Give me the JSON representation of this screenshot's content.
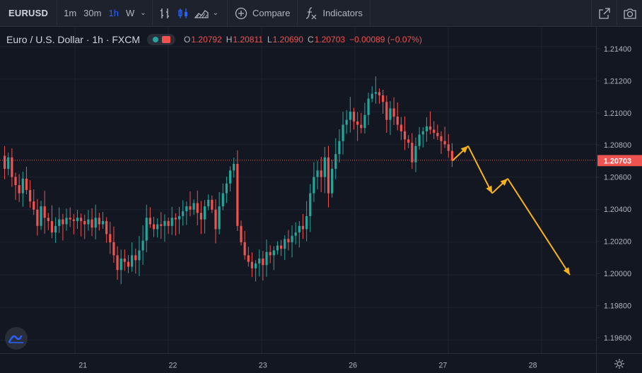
{
  "toolbar": {
    "symbol": "EURUSD",
    "timeframes": [
      {
        "label": "1m",
        "active": false
      },
      {
        "label": "30m",
        "active": false
      },
      {
        "label": "1h",
        "active": true
      },
      {
        "label": "W",
        "active": false
      }
    ],
    "compare_label": "Compare",
    "indicators_label": "Indicators",
    "icons": [
      "bar-chart-icon",
      "candle-chart-icon",
      "area-chart-icon",
      "compare-plus-icon",
      "indicators-fx-icon",
      "snapshot-share-icon",
      "camera-icon"
    ]
  },
  "legend": {
    "title": "Euro / U.S. Dollar · 1h · FXCM",
    "open_key": "O",
    "open": "1.20792",
    "high_key": "H",
    "high": "1.20811",
    "low_key": "L",
    "low": "1.20690",
    "close_key": "C",
    "close": "1.20703",
    "change": "−0.00089 (−0.07%)"
  },
  "colors": {
    "background": "#131722",
    "up": "#26a69a",
    "down": "#ef5350",
    "projection": "#f7b21c",
    "price_line": "#ef5350"
  },
  "chart_data": {
    "type": "candlestick",
    "title": "Euro / U.S. Dollar · 1h · FXCM",
    "ylim": [
      1.1952,
      1.2152
    ],
    "y_ticks": [
      "1.21400",
      "1.21200",
      "1.21000",
      "1.20800",
      "1.20600",
      "1.20400",
      "1.20200",
      "1.20000",
      "1.19800",
      "1.19600"
    ],
    "x_ticks": [
      "21",
      "22",
      "23",
      "26",
      "27",
      "28"
    ],
    "last_price": "1.20703",
    "grid": true,
    "candle_closes": [
      1.2065,
      1.2072,
      1.206,
      1.2055,
      1.205,
      1.2059,
      1.2052,
      1.2045,
      1.204,
      1.203,
      1.2042,
      1.2035,
      1.2033,
      1.2026,
      1.203,
      1.2034,
      1.2031,
      1.2035,
      1.2034,
      1.2033,
      1.2035,
      1.2033,
      1.2031,
      1.2034,
      1.2029,
      1.2035,
      1.2031,
      1.2033,
      1.2025,
      1.202,
      1.2012,
      1.2003,
      1.201,
      1.2008,
      1.2005,
      1.2012,
      1.2009,
      1.2015,
      1.2021,
      1.2035,
      1.2031,
      1.2028,
      1.2031,
      1.203,
      1.2033,
      1.203,
      1.2035,
      1.2034,
      1.2036,
      1.2039,
      1.2042,
      1.204,
      1.2044,
      1.2038,
      1.2034,
      1.2042,
      1.2046,
      1.204,
      1.2028,
      1.2042,
      1.205,
      1.2056,
      1.2064,
      1.2068,
      1.203,
      1.202,
      1.2012,
      1.2008,
      1.2004,
      1.2007,
      1.201,
      1.2006,
      1.2014,
      1.2012,
      1.2015,
      1.2018,
      1.2016,
      1.2022,
      1.202,
      1.2024,
      1.2026,
      1.203,
      1.2028,
      1.2036,
      1.205,
      1.206,
      1.2064,
      1.206,
      1.2072,
      1.205,
      1.2065,
      1.2074,
      1.2082,
      1.2092,
      1.2095,
      1.21,
      1.2094,
      1.2092,
      1.209,
      1.2098,
      1.2108,
      1.2111,
      1.2112,
      1.211,
      1.2106,
      1.2095,
      1.2102,
      1.2097,
      1.2092,
      1.2088,
      1.2083,
      1.2081,
      1.2069,
      1.2079,
      1.2086,
      1.2088,
      1.2091,
      1.2089,
      1.2087,
      1.2085,
      1.2082,
      1.208,
      1.2076,
      1.207
    ],
    "projection": [
      {
        "date": "27",
        "price": 1.207
      },
      {
        "date": "27",
        "price": 1.2079
      },
      {
        "date": "27",
        "price": 1.205
      },
      {
        "date": "27",
        "price": 1.2059
      },
      {
        "date": "28",
        "price": 1.2
      }
    ]
  }
}
